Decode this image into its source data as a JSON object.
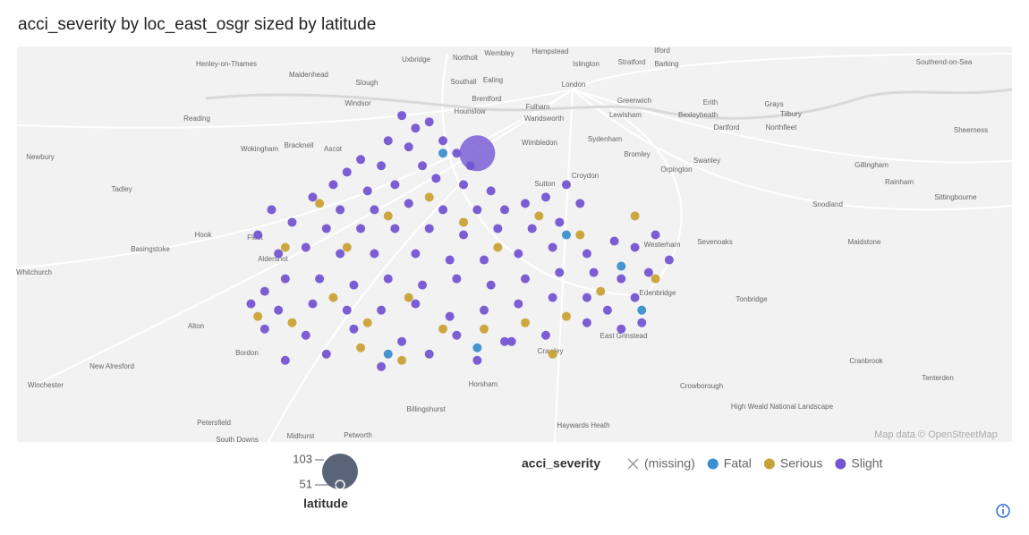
{
  "chart_data": {
    "type": "scatter",
    "title": "acci_severity by loc_east_osgr sized by latitude",
    "legend_title": "acci_severity",
    "size_title": "latitude",
    "size_ticks": [
      103,
      51
    ],
    "size_lim": [
      51,
      103
    ],
    "xlim": [
      450000,
      595000
    ],
    "ylim": [
      127000,
      190000
    ],
    "series": [
      {
        "name": "(missing)",
        "color": "#9a9a9a",
        "x": [],
        "values": [],
        "sizes": []
      },
      {
        "name": "Fatal",
        "color": "#3b8fcf",
        "x": [
          512000,
          530000,
          504000,
          517000,
          538000,
          541000
        ],
        "values": [
          173000,
          160000,
          141000,
          142000,
          155000,
          148000
        ],
        "sizes": [
          51,
          51,
          51,
          51,
          51,
          51
        ]
      },
      {
        "name": "Serious",
        "color": "#c9a236",
        "x": [
          485000,
          490000,
          496000,
          501000,
          507000,
          512000,
          518000,
          524000,
          530000,
          535000,
          498000,
          504000,
          515000,
          526000,
          532000,
          540000,
          494000,
          510000,
          520000,
          506000,
          500000,
          528000,
          543000,
          489000
        ],
        "values": [
          147000,
          146000,
          150000,
          146000,
          150000,
          145000,
          145000,
          146000,
          147000,
          151000,
          158000,
          163000,
          162000,
          163000,
          160000,
          163000,
          165000,
          166000,
          158000,
          140000,
          142000,
          141000,
          153000,
          158000
        ],
        "sizes": [
          51,
          51,
          51,
          51,
          51,
          51,
          51,
          51,
          51,
          51,
          51,
          51,
          51,
          51,
          51,
          51,
          51,
          51,
          51,
          51,
          51,
          51,
          51,
          51
        ]
      },
      {
        "name": "Slight",
        "color": "#7455d2",
        "x": [
          517000,
          506000,
          508000,
          510000,
          504000,
          507000,
          512000,
          514000,
          509000,
          503000,
          516000,
          500000,
          498000,
          511000,
          515000,
          519000,
          505000,
          501000,
          496000,
          493000,
          497000,
          502000,
          507000,
          512000,
          517000,
          521000,
          524000,
          527000,
          530000,
          532000,
          529000,
          525000,
          520000,
          515000,
          510000,
          505000,
          500000,
          495000,
          490000,
          487000,
          485000,
          488000,
          492000,
          497000,
          502000,
          508000,
          513000,
          518000,
          523000,
          528000,
          533000,
          537000,
          540000,
          543000,
          545000,
          542000,
          538000,
          534000,
          529000,
          524000,
          519000,
          514000,
          509000,
          504000,
          499000,
          494000,
          489000,
          486000,
          484000,
          488000,
          493000,
          498000,
          503000,
          508000,
          513000,
          518000,
          523000,
          528000,
          533000,
          536000,
          540000,
          486000,
          492000,
          499000,
          506000,
          514000,
          521000,
          527000,
          533000,
          538000,
          541000,
          489000,
          495000,
          503000,
          510000,
          517000,
          522000
        ],
        "values": [
          173000,
          179000,
          177000,
          178000,
          175000,
          174000,
          175000,
          173000,
          171000,
          171000,
          171000,
          172000,
          170000,
          169000,
          168000,
          167000,
          168000,
          167000,
          168000,
          166000,
          164000,
          164000,
          165000,
          164000,
          164000,
          164000,
          165000,
          166000,
          168000,
          165000,
          162000,
          161000,
          161000,
          160000,
          161000,
          161000,
          161000,
          161000,
          162000,
          164000,
          160000,
          157000,
          158000,
          157000,
          157000,
          157000,
          156000,
          156000,
          157000,
          158000,
          157000,
          159000,
          158000,
          160000,
          156000,
          154000,
          153000,
          154000,
          154000,
          153000,
          152000,
          153000,
          152000,
          153000,
          152000,
          153000,
          153000,
          151000,
          149000,
          148000,
          149000,
          148000,
          148000,
          149000,
          147000,
          148000,
          149000,
          150000,
          150000,
          148000,
          150000,
          145000,
          144000,
          145000,
          143000,
          144000,
          143000,
          144000,
          146000,
          145000,
          146000,
          140000,
          141000,
          139000,
          141000,
          140000,
          143000
        ],
        "sizes": [
          103,
          51,
          51,
          51,
          51,
          51,
          51,
          51,
          51,
          51,
          51,
          51,
          51,
          51,
          51,
          51,
          51,
          51,
          51,
          51,
          51,
          51,
          51,
          51,
          51,
          51,
          51,
          51,
          51,
          51,
          51,
          51,
          51,
          51,
          51,
          51,
          51,
          51,
          51,
          51,
          51,
          51,
          51,
          51,
          51,
          51,
          51,
          51,
          51,
          51,
          51,
          51,
          51,
          51,
          51,
          51,
          51,
          51,
          51,
          51,
          51,
          51,
          51,
          51,
          51,
          51,
          51,
          51,
          51,
          51,
          51,
          51,
          51,
          51,
          51,
          51,
          51,
          51,
          51,
          51,
          51,
          51,
          51,
          51,
          51,
          51,
          51,
          51,
          51,
          51,
          51,
          51,
          51,
          51,
          51,
          51,
          51
        ]
      }
    ]
  },
  "map": {
    "attribution": "Map data © OpenStreetMap",
    "places": [
      "Henley-on-Thames",
      "Maidenhead",
      "Slough",
      "Uxbridge",
      "Northolt",
      "Wembley",
      "Hampstead",
      "Ilford",
      "Islington",
      "Stratford",
      "Barking",
      "Southall",
      "Ealing",
      "London",
      "Windsor",
      "Brentford",
      "Hounslow",
      "Fulham",
      "Wandsworth",
      "Greenwich",
      "Erith",
      "Grays",
      "Southend-on-Sea",
      "Reading",
      "Wokingham",
      "Bracknell",
      "Ascot",
      "Newbury",
      "Tadley",
      "Wimbledon",
      "Sydenham",
      "Lewisham",
      "Bexleyheath",
      "Dartford",
      "Northfleet",
      "Tilbury",
      "Croydon",
      "Sutton",
      "Orpington",
      "Bromley",
      "Swanley",
      "Gillingham",
      "Rainham",
      "Sittingbourne",
      "Sheerness",
      "Snodland",
      "Maidstone",
      "Sevenoaks",
      "Westerham",
      "Hook",
      "Fleet",
      "Basingstoke",
      "Whitchurch",
      "Alton",
      "Bordon",
      "Aldershot",
      "Tonbridge",
      "Edenbridge",
      "East Grinstead",
      "Crawley",
      "Horsham",
      "Crowborough",
      "Cranbrook",
      "Tenterden",
      "Winchester",
      "New Alresford",
      "Petersfield",
      "Midhurst",
      "Petworth",
      "Billingshurst",
      "Haywards Heath",
      "South Downs",
      "High Weald National Landscape"
    ]
  }
}
